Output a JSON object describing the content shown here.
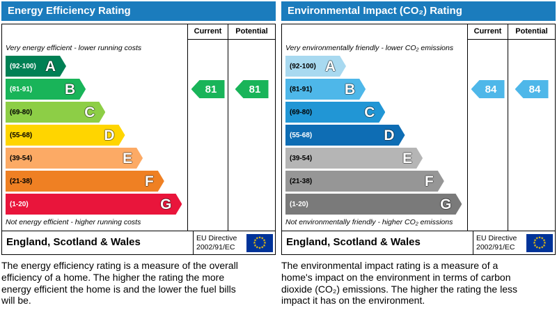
{
  "chart_data": [
    {
      "type": "bar",
      "title": "Energy Efficiency Rating",
      "categories": [
        "A",
        "B",
        "C",
        "D",
        "E",
        "F",
        "G"
      ],
      "band_ranges": [
        "92-100",
        "81-91",
        "69-80",
        "55-68",
        "39-54",
        "21-38",
        "1-20"
      ],
      "series": [
        {
          "name": "Current",
          "values": [
            81
          ],
          "band": "B"
        },
        {
          "name": "Potential",
          "values": [
            81
          ],
          "band": "B"
        }
      ],
      "ylim": [
        1,
        100
      ],
      "legend_position": "top-right-columns"
    },
    {
      "type": "bar",
      "title": "Environmental Impact (CO₂) Rating",
      "categories": [
        "A",
        "B",
        "C",
        "D",
        "E",
        "F",
        "G"
      ],
      "band_ranges": [
        "92-100",
        "81-91",
        "69-80",
        "55-68",
        "39-54",
        "21-38",
        "1-20"
      ],
      "series": [
        {
          "name": "Current",
          "values": [
            84
          ],
          "band": "B"
        },
        {
          "name": "Potential",
          "values": [
            84
          ],
          "band": "B"
        }
      ],
      "ylim": [
        1,
        100
      ],
      "legend_position": "top-right-columns"
    }
  ],
  "panels": [
    {
      "title": "Energy Efficiency Rating",
      "header_color": "#1b7cbd",
      "col_current": "Current",
      "col_potential": "Potential",
      "top_note": "Very energy efficient - lower running costs",
      "bottom_note": "Not energy efficient - higher running costs",
      "bands": [
        {
          "letter": "A",
          "range": "(92-100)",
          "color": "#008054",
          "range_color": "#ffffff",
          "width_pct": 34
        },
        {
          "letter": "B",
          "range": "(81-91)",
          "color": "#19b459",
          "range_color": "#ffffff",
          "width_pct": 45
        },
        {
          "letter": "C",
          "range": "(69-80)",
          "color": "#8dce46",
          "range_color": "#000000",
          "width_pct": 56
        },
        {
          "letter": "D",
          "range": "(55-68)",
          "color": "#ffd500",
          "range_color": "#000000",
          "width_pct": 67
        },
        {
          "letter": "E",
          "range": "(39-54)",
          "color": "#fcaa65",
          "range_color": "#000000",
          "width_pct": 77
        },
        {
          "letter": "F",
          "range": "(21-38)",
          "color": "#ef8023",
          "range_color": "#000000",
          "width_pct": 89
        },
        {
          "letter": "G",
          "range": "(1-20)",
          "color": "#e9153b",
          "range_color": "#ffffff",
          "width_pct": 99
        }
      ],
      "current": {
        "value": "81",
        "color": "#19b459",
        "band_index": 1
      },
      "potential": {
        "value": "81",
        "color": "#19b459",
        "band_index": 1
      },
      "footer_region": "England, Scotland & Wales",
      "eu_directive_line1": "EU Directive",
      "eu_directive_line2": "2002/91/EC",
      "description": "The energy efficiency rating is a measure of the overall efficiency of a home. The higher the rating the more energy efficient the home is and the lower the fuel bills will be."
    },
    {
      "title": "Environmental Impact (CO₂) Rating",
      "header_color": "#1b7cbd",
      "col_current": "Current",
      "col_potential": "Potential",
      "top_note": "Very environmentally friendly - lower CO₂ emissions",
      "bottom_note": "Not environmentally friendly - higher CO₂ emissions",
      "bands": [
        {
          "letter": "A",
          "range": "(92-100)",
          "color": "#a8d9f0",
          "range_color": "#000000",
          "width_pct": 34
        },
        {
          "letter": "B",
          "range": "(81-91)",
          "color": "#4eb7e9",
          "range_color": "#000000",
          "width_pct": 45
        },
        {
          "letter": "C",
          "range": "(69-80)",
          "color": "#2196d5",
          "range_color": "#000000",
          "width_pct": 56
        },
        {
          "letter": "D",
          "range": "(55-68)",
          "color": "#0e6db4",
          "range_color": "#ffffff",
          "width_pct": 67
        },
        {
          "letter": "E",
          "range": "(39-54)",
          "color": "#b5b5b5",
          "range_color": "#000000",
          "width_pct": 77
        },
        {
          "letter": "F",
          "range": "(21-38)",
          "color": "#969696",
          "range_color": "#000000",
          "width_pct": 89
        },
        {
          "letter": "G",
          "range": "(1-20)",
          "color": "#7a7a7a",
          "range_color": "#ffffff",
          "width_pct": 99
        }
      ],
      "current": {
        "value": "84",
        "color": "#4eb7e9",
        "band_index": 1
      },
      "potential": {
        "value": "84",
        "color": "#4eb7e9",
        "band_index": 1
      },
      "footer_region": "England, Scotland & Wales",
      "eu_directive_line1": "EU Directive",
      "eu_directive_line2": "2002/91/EC",
      "description": "The environmental impact rating is a measure of a home's impact on the environment in terms of carbon dioxide (CO₂) emissions. The higher the rating the less impact it has on the environment."
    }
  ]
}
